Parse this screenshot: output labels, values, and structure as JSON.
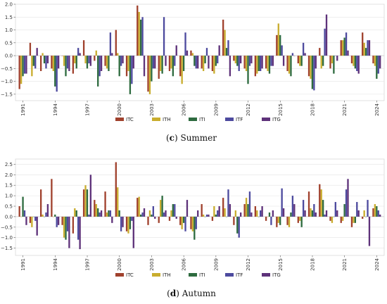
{
  "chart_data": [
    {
      "type": "bar",
      "caption_label": "c",
      "caption_text": "Summer",
      "categories": [
        "1991",
        "1992",
        "1993",
        "1994",
        "1995",
        "1996",
        "1997",
        "1998",
        "1999",
        "2000",
        "2001",
        "2002",
        "2003",
        "2004",
        "2005",
        "2006",
        "2007",
        "2008",
        "2009",
        "2010",
        "2011",
        "2012",
        "2013",
        "2014",
        "2015",
        "2016",
        "2017",
        "2018",
        "2019",
        "2020",
        "2021",
        "2022",
        "2023",
        "2024"
      ],
      "xtick_labels": [
        "1991",
        "1994",
        "1997",
        "2000",
        "2003",
        "2006",
        "2009",
        "2012",
        "2015",
        "2018",
        "2021",
        "2024"
      ],
      "ylim": [
        -1.75,
        2.0
      ],
      "yticks": [
        -1.5,
        -1.0,
        -0.5,
        0.0,
        0.5,
        1.0,
        1.5,
        2.0
      ],
      "ytick_labels": [
        "−1.5",
        "−1.0",
        "−0.5",
        "0.0",
        "0.5",
        "1.0",
        "1.5",
        "2.0"
      ],
      "grid": true,
      "legend_position": "bottom-center",
      "series": [
        {
          "name": "ITC",
          "color": "#a0412d",
          "values": [
            -1.3,
            0.5,
            -0.6,
            -0.5,
            0.0,
            -0.7,
            0.6,
            -0.2,
            -0.4,
            1.0,
            -0.8,
            1.95,
            -1.4,
            -0.9,
            -0.6,
            -0.8,
            0.2,
            -0.5,
            -0.6,
            1.4,
            -0.2,
            -0.5,
            -0.8,
            -0.5,
            0.8,
            -0.6,
            -0.3,
            -0.8,
            0.3,
            -0.5,
            0.6,
            -0.3,
            0.9,
            -0.3
          ]
        },
        {
          "name": "ITH",
          "color": "#c9ad2e",
          "values": [
            -1.1,
            -0.8,
            0.1,
            -0.6,
            -0.4,
            -0.3,
            -0.3,
            0.2,
            -0.5,
            0.1,
            -0.6,
            1.7,
            -1.5,
            -0.6,
            -0.5,
            -1.1,
            0.1,
            -0.6,
            -0.7,
            1.0,
            -0.3,
            -0.6,
            -0.7,
            -0.6,
            1.25,
            -0.7,
            -0.4,
            -0.9,
            -0.5,
            -0.3,
            0.6,
            -0.4,
            0.5,
            -0.4
          ]
        },
        {
          "name": "ITI",
          "color": "#2e6b3f",
          "values": [
            -0.8,
            -0.4,
            -0.3,
            -1.2,
            -0.8,
            -0.5,
            -0.5,
            -1.2,
            -0.6,
            -0.8,
            -1.5,
            1.4,
            -1.0,
            -0.7,
            -0.8,
            -0.6,
            -0.4,
            -0.3,
            -0.4,
            0.3,
            -0.4,
            -1.1,
            -0.6,
            -0.7,
            0.8,
            -0.8,
            -0.4,
            -1.3,
            -0.4,
            -0.7,
            0.7,
            -0.5,
            0.3,
            -0.9
          ]
        },
        {
          "name": "ITF",
          "color": "#4d4a9e",
          "values": [
            -0.7,
            -0.5,
            -0.5,
            -1.4,
            -0.5,
            0.3,
            -0.3,
            -0.8,
            0.9,
            -0.4,
            -1.1,
            1.5,
            -0.5,
            1.5,
            -0.4,
            0.9,
            -0.5,
            0.3,
            -0.3,
            0.6,
            -0.6,
            -0.4,
            -0.6,
            -0.4,
            0.4,
            0.1,
            0.5,
            -1.35,
            1.05,
            0.0,
            0.9,
            -0.6,
            0.6,
            -0.7
          ]
        },
        {
          "name": "ITG",
          "color": "#5e327a",
          "values": [
            -0.7,
            0.3,
            -0.3,
            -0.5,
            -0.6,
            0.1,
            -0.4,
            -0.6,
            0.1,
            -0.3,
            -0.5,
            -0.8,
            -0.5,
            -0.4,
            0.4,
            0.2,
            -0.5,
            -0.5,
            0.4,
            -0.8,
            -0.3,
            -0.3,
            -0.5,
            -0.4,
            -0.4,
            0.0,
            0.1,
            -0.5,
            1.6,
            -0.2,
            0.2,
            -0.7,
            0.6,
            -0.5
          ]
        }
      ]
    },
    {
      "type": "bar",
      "caption_label": "d",
      "caption_text": "Autumn",
      "categories": [
        "1991",
        "1992",
        "1993",
        "1994",
        "1995",
        "1996",
        "1997",
        "1998",
        "1999",
        "2000",
        "2001",
        "2002",
        "2003",
        "2004",
        "2005",
        "2006",
        "2007",
        "2008",
        "2009",
        "2010",
        "2011",
        "2012",
        "2013",
        "2014",
        "2015",
        "2016",
        "2017",
        "2018",
        "2019",
        "2020",
        "2021",
        "2022",
        "2023",
        "2024"
      ],
      "xtick_labels": [
        "1991",
        "1994",
        "1997",
        "2000",
        "2003",
        "2006",
        "2009",
        "2012",
        "2015",
        "2018",
        "2021",
        "2024"
      ],
      "ylim": [
        -1.85,
        2.75
      ],
      "yticks": [
        -1.5,
        -1.0,
        -0.5,
        0.0,
        0.5,
        1.0,
        1.5,
        2.0,
        2.5
      ],
      "ytick_labels": [
        "−1.5",
        "−1.0",
        "−0.5",
        "0.0",
        "0.5",
        "1.0",
        "1.5",
        "2.0",
        "2.5"
      ],
      "grid": true,
      "legend_position": "bottom-center",
      "series": [
        {
          "name": "ITC",
          "color": "#a0412d",
          "values": [
            0.5,
            -0.3,
            1.3,
            1.8,
            -0.4,
            -0.8,
            1.3,
            0.8,
            1.2,
            2.6,
            -0.7,
            0.9,
            -0.4,
            -0.3,
            -0.2,
            -0.4,
            -0.6,
            0.6,
            -0.2,
            0.9,
            -0.4,
            0.6,
            0.5,
            -0.2,
            -0.5,
            -0.4,
            -0.3,
            1.2,
            1.55,
            -0.2,
            -0.3,
            -0.5,
            -0.1,
            0.4
          ]
        },
        {
          "name": "ITH",
          "color": "#c9ad2e",
          "values": [
            0.0,
            -0.5,
            0.1,
            0.0,
            -1.0,
            0.4,
            1.5,
            0.6,
            0.2,
            1.4,
            -0.8,
            0.95,
            0.3,
            0.8,
            0.3,
            -0.6,
            -0.7,
            0.1,
            0.5,
            0.4,
            0.3,
            0.9,
            0.3,
            0.0,
            -0.3,
            -0.5,
            -0.2,
            0.4,
            1.3,
            -0.3,
            -0.2,
            -0.3,
            0.3,
            0.6
          ]
        },
        {
          "name": "ITI",
          "color": "#2e6b3f",
          "values": [
            0.95,
            0.0,
            0.0,
            0.1,
            -1.1,
            0.3,
            1.3,
            0.4,
            0.3,
            0.3,
            -0.6,
            0.1,
            0.1,
            1.0,
            0.6,
            -0.3,
            -1.1,
            0.0,
            0.1,
            0.0,
            -0.8,
            0.6,
            0.0,
            0.2,
            -0.4,
            0.2,
            -0.5,
            0.3,
            0.8,
            0.0,
            0.6,
            -0.3,
            0.0,
            0.5
          ]
        },
        {
          "name": "ITF",
          "color": "#4d4a9e",
          "values": [
            0.3,
            -0.2,
            0.2,
            -0.5,
            -0.7,
            -1.1,
            0.1,
            0.2,
            0.3,
            -0.7,
            -0.2,
            0.2,
            0.5,
            0.2,
            0.6,
            -0.7,
            -0.6,
            0.1,
            0.3,
            1.3,
            -1.0,
            1.2,
            0.3,
            -0.4,
            1.35,
            1.0,
            0.8,
            0.6,
            0.1,
            0.7,
            1.3,
            0.7,
            0.8,
            0.3
          ]
        },
        {
          "name": "ITG",
          "color": "#5e327a",
          "values": [
            -0.4,
            -0.9,
            0.6,
            -0.4,
            -1.5,
            -1.55,
            2.0,
            0.3,
            -0.3,
            -0.5,
            -1.5,
            0.4,
            -0.1,
            0.3,
            -0.1,
            0.8,
            0.3,
            0.1,
            0.5,
            0.6,
            0.2,
            0.2,
            0.5,
            0.3,
            0.4,
            0.6,
            0.3,
            0.2,
            0.3,
            0.3,
            1.8,
            0.3,
            -1.4,
            0.1
          ]
        }
      ]
    }
  ]
}
